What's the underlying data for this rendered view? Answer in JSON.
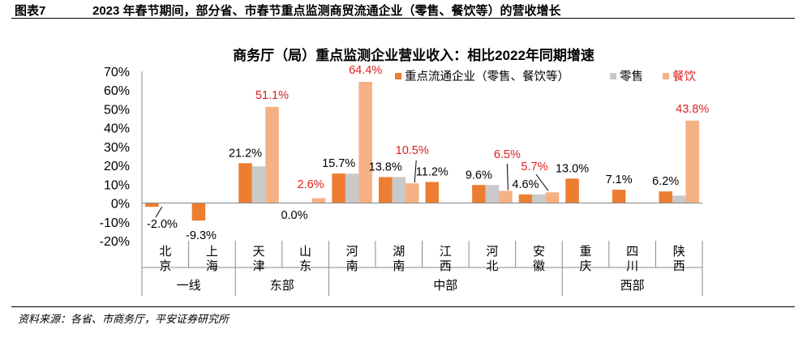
{
  "header": {
    "figure_label": "图表7",
    "caption": "2023 年春节期间，部分省、市春节重点监测商贸流通企业（零售、餐饮等）的营收增长"
  },
  "footer": {
    "source": "资料来源：各省、市商务厅，平安证券研究所"
  },
  "chart_data": {
    "type": "bar",
    "title": "商务厅（局）重点监测企业营业收入：相比2022年同期增速",
    "categories": [
      "北京",
      "上海",
      "天津",
      "山东",
      "河南",
      "湖南",
      "江西",
      "河北",
      "安徽",
      "重庆",
      "四川",
      "陕西"
    ],
    "groups": [
      {
        "name": "一线",
        "count": 2
      },
      {
        "name": "东部",
        "count": 2
      },
      {
        "name": "中部",
        "count": 5
      },
      {
        "name": "西部",
        "count": 3
      }
    ],
    "ylim": [
      -20,
      70
    ],
    "yticks": [
      "-20%",
      "-10%",
      "0%",
      "10%",
      "20%",
      "30%",
      "40%",
      "50%",
      "60%",
      "70%"
    ],
    "series": [
      {
        "name": "重点流通企业（零售、餐饮等）",
        "color": "#ED7D31",
        "values": [
          -2.0,
          -9.3,
          21.2,
          0.0,
          15.7,
          13.8,
          11.2,
          9.6,
          4.6,
          13.0,
          7.1,
          6.2
        ],
        "labels": [
          "-2.0%",
          "-9.3%",
          "21.2%",
          "0.0%",
          "15.7%",
          "13.8%",
          "11.2%",
          "9.6%",
          "4.6%",
          "13.0%",
          "7.1%",
          "6.2%"
        ]
      },
      {
        "name": "零售",
        "color": "#C9C9C9",
        "values": [
          null,
          null,
          19.5,
          null,
          15.6,
          13.8,
          null,
          9.6,
          4.6,
          null,
          null,
          4.0
        ]
      },
      {
        "name": "餐饮",
        "color": "#F4B183",
        "label_color": "#E01E1E",
        "values": [
          null,
          null,
          51.1,
          2.6,
          64.4,
          10.5,
          null,
          6.5,
          5.7,
          null,
          null,
          43.8
        ],
        "labels": [
          null,
          null,
          "51.1%",
          "2.6%",
          "64.4%",
          "10.5%",
          null,
          "6.5%",
          "5.7%",
          null,
          null,
          "43.8%"
        ]
      }
    ]
  }
}
